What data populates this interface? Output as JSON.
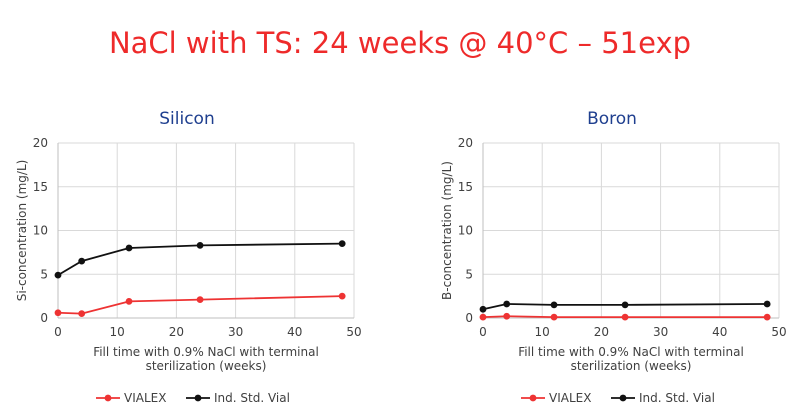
{
  "title": "NaCl with TS: 24 weeks @ 40°C – 51exp",
  "colors": {
    "vialex": "#ee3333",
    "standard": "#111111",
    "title": "#ee2a2a",
    "subtitle": "#1f3f8f"
  },
  "chart_data": [
    {
      "type": "line",
      "title": "Silicon",
      "xlabel_lines": [
        "Fill time with 0.9% NaCl with terminal",
        "sterilization (weeks)"
      ],
      "ylabel": "Si-concentration (mg/L)",
      "xlim": [
        0,
        50
      ],
      "ylim": [
        0,
        20
      ],
      "xticks": [
        "0",
        "10",
        "20",
        "30",
        "40",
        "50"
      ],
      "yticks": [
        "0",
        "5",
        "10",
        "15",
        "20"
      ],
      "grid": true,
      "legend": "bottom",
      "series": [
        {
          "name": "VIALEX",
          "x": [
            0,
            4,
            12,
            24,
            48
          ],
          "y": [
            0.6,
            0.5,
            1.9,
            2.1,
            2.5
          ]
        },
        {
          "name": "Ind. Std. Vial",
          "x": [
            0,
            4,
            12,
            24,
            48
          ],
          "y": [
            4.9,
            6.5,
            8.0,
            8.3,
            8.5
          ]
        }
      ]
    },
    {
      "type": "line",
      "title": "Boron",
      "xlabel_lines": [
        "Fill time with 0.9% NaCl with terminal",
        "sterilization (weeks)"
      ],
      "ylabel": "B-concentration (mg/L)",
      "xlim": [
        0,
        50
      ],
      "ylim": [
        0,
        20
      ],
      "xticks": [
        "0",
        "10",
        "20",
        "30",
        "40",
        "50"
      ],
      "yticks": [
        "0",
        "5",
        "10",
        "15",
        "20"
      ],
      "grid": true,
      "legend": "bottom",
      "series": [
        {
          "name": "VIALEX",
          "x": [
            0,
            4,
            12,
            24,
            48
          ],
          "y": [
            0.1,
            0.2,
            0.1,
            0.1,
            0.1
          ]
        },
        {
          "name": "Ind. Std. Vial",
          "x": [
            0,
            4,
            12,
            24,
            48
          ],
          "y": [
            1.0,
            1.6,
            1.5,
            1.5,
            1.6
          ]
        }
      ]
    }
  ]
}
